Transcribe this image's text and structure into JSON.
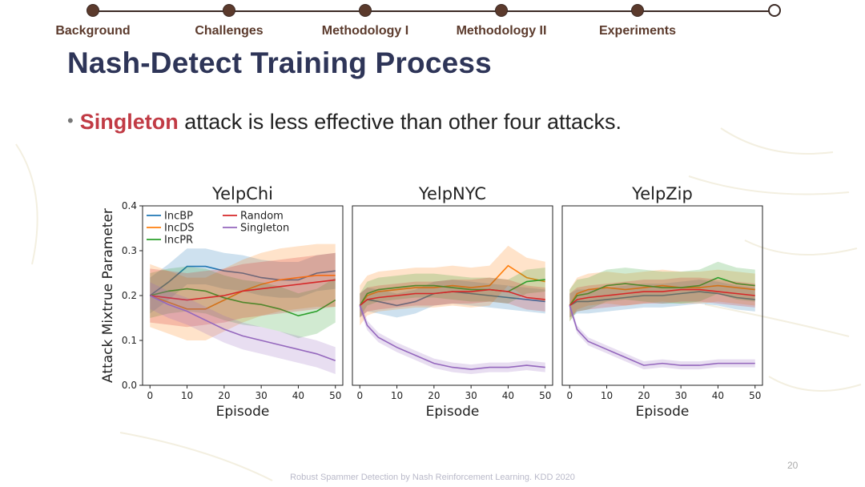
{
  "nav": {
    "items": [
      {
        "label": "Background",
        "done": true
      },
      {
        "label": "Challenges",
        "done": true
      },
      {
        "label": "Methodology I",
        "done": true
      },
      {
        "label": "Methodology II",
        "done": true
      },
      {
        "label": "Experiments",
        "done": true
      },
      {
        "label": "",
        "done": false
      }
    ]
  },
  "slide": {
    "title": "Nash-Detect Training Process",
    "bullet_highlight": "Singleton",
    "bullet_rest": "attack is less effective than other four attacks."
  },
  "footer": {
    "citation": "Robust Spammer Detection by Nash Reinforcement Learning. KDD 2020",
    "page_number": "20"
  },
  "colors": {
    "IncBP": "#1f77b4",
    "IncDS": "#ff7f0e",
    "IncPR": "#2ca02c",
    "Random": "#d62728",
    "Singleton": "#9467bd",
    "title": "#2e3558",
    "highlight": "#c13b45",
    "nav": "#5b3a2c"
  },
  "chart_data": [
    {
      "type": "line",
      "title": "YelpChi",
      "xlabel": "Episode",
      "ylabel": "Attack Mixtrue Parameter",
      "xlim": [
        -2,
        52
      ],
      "ylim": [
        0,
        0.4
      ],
      "xticks": [
        0,
        10,
        20,
        30,
        40,
        50
      ],
      "yticks": [
        0.0,
        0.1,
        0.2,
        0.3,
        0.4
      ],
      "ytick_labels": [
        "0.0",
        "0.1",
        "0.2",
        "0.3",
        "0.4"
      ],
      "legend": {
        "position": "top-left",
        "entries": [
          "IncBP",
          "IncDS",
          "IncPR",
          "Random",
          "Singleton"
        ]
      },
      "x": [
        0,
        5,
        10,
        15,
        20,
        25,
        30,
        35,
        40,
        45,
        50
      ],
      "series": [
        {
          "name": "IncBP",
          "values": [
            0.2,
            0.23,
            0.265,
            0.265,
            0.255,
            0.25,
            0.24,
            0.235,
            0.235,
            0.25,
            0.255
          ],
          "band": 0.04
        },
        {
          "name": "IncDS",
          "values": [
            0.2,
            0.185,
            0.17,
            0.17,
            0.19,
            0.21,
            0.225,
            0.235,
            0.24,
            0.245,
            0.245
          ],
          "band": 0.07
        },
        {
          "name": "IncPR",
          "values": [
            0.2,
            0.21,
            0.215,
            0.21,
            0.195,
            0.185,
            0.18,
            0.17,
            0.155,
            0.165,
            0.19
          ],
          "band": 0.05
        },
        {
          "name": "Random",
          "values": [
            0.2,
            0.195,
            0.19,
            0.195,
            0.2,
            0.21,
            0.215,
            0.22,
            0.225,
            0.23,
            0.235
          ],
          "band": 0.06
        },
        {
          "name": "Singleton",
          "values": [
            0.2,
            0.18,
            0.165,
            0.145,
            0.125,
            0.11,
            0.1,
            0.09,
            0.08,
            0.07,
            0.055
          ],
          "band": 0.03
        }
      ]
    },
    {
      "type": "line",
      "title": "YelpNYC",
      "xlabel": "Episode",
      "ylabel": "",
      "xlim": [
        -2,
        52
      ],
      "ylim": [
        0,
        0.45
      ],
      "xticks": [
        0,
        10,
        20,
        30,
        40,
        50
      ],
      "x": [
        0,
        2,
        5,
        10,
        15,
        20,
        25,
        30,
        35,
        40,
        45,
        50
      ],
      "series": [
        {
          "name": "IncBP",
          "values": [
            0.2,
            0.215,
            0.21,
            0.2,
            0.21,
            0.23,
            0.235,
            0.23,
            0.225,
            0.22,
            0.215,
            0.21
          ],
          "band": 0.03
        },
        {
          "name": "IncDS",
          "values": [
            0.2,
            0.225,
            0.235,
            0.24,
            0.245,
            0.245,
            0.25,
            0.245,
            0.25,
            0.3,
            0.27,
            0.26
          ],
          "band": 0.05
        },
        {
          "name": "IncPR",
          "values": [
            0.2,
            0.23,
            0.24,
            0.245,
            0.25,
            0.25,
            0.245,
            0.24,
            0.24,
            0.235,
            0.26,
            0.265
          ],
          "band": 0.03
        },
        {
          "name": "Random",
          "values": [
            0.2,
            0.215,
            0.22,
            0.225,
            0.23,
            0.23,
            0.235,
            0.235,
            0.24,
            0.235,
            0.22,
            0.215
          ],
          "band": 0.03
        },
        {
          "name": "Singleton",
          "values": [
            0.2,
            0.15,
            0.12,
            0.095,
            0.075,
            0.055,
            0.045,
            0.04,
            0.045,
            0.045,
            0.05,
            0.045
          ],
          "band": 0.012
        }
      ]
    },
    {
      "type": "line",
      "title": "YelpZip",
      "xlabel": "Episode",
      "ylabel": "",
      "xlim": [
        -2,
        52
      ],
      "ylim": [
        0,
        0.45
      ],
      "xticks": [
        0,
        10,
        20,
        30,
        40,
        50
      ],
      "x": [
        0,
        2,
        5,
        10,
        15,
        20,
        25,
        30,
        35,
        40,
        45,
        50
      ],
      "series": [
        {
          "name": "IncBP",
          "values": [
            0.2,
            0.21,
            0.21,
            0.215,
            0.22,
            0.225,
            0.225,
            0.23,
            0.235,
            0.23,
            0.22,
            0.215
          ],
          "band": 0.03
        },
        {
          "name": "IncDS",
          "values": [
            0.2,
            0.23,
            0.24,
            0.245,
            0.24,
            0.245,
            0.25,
            0.245,
            0.245,
            0.25,
            0.245,
            0.24
          ],
          "band": 0.04
        },
        {
          "name": "IncPR",
          "values": [
            0.2,
            0.225,
            0.23,
            0.25,
            0.255,
            0.25,
            0.245,
            0.245,
            0.25,
            0.27,
            0.255,
            0.25
          ],
          "band": 0.04
        },
        {
          "name": "Random",
          "values": [
            0.2,
            0.215,
            0.22,
            0.225,
            0.23,
            0.235,
            0.235,
            0.24,
            0.24,
            0.235,
            0.23,
            0.225
          ],
          "band": 0.03
        },
        {
          "name": "Singleton",
          "values": [
            0.2,
            0.14,
            0.11,
            0.09,
            0.07,
            0.05,
            0.055,
            0.05,
            0.05,
            0.055,
            0.055,
            0.055
          ],
          "band": 0.01
        }
      ]
    }
  ]
}
